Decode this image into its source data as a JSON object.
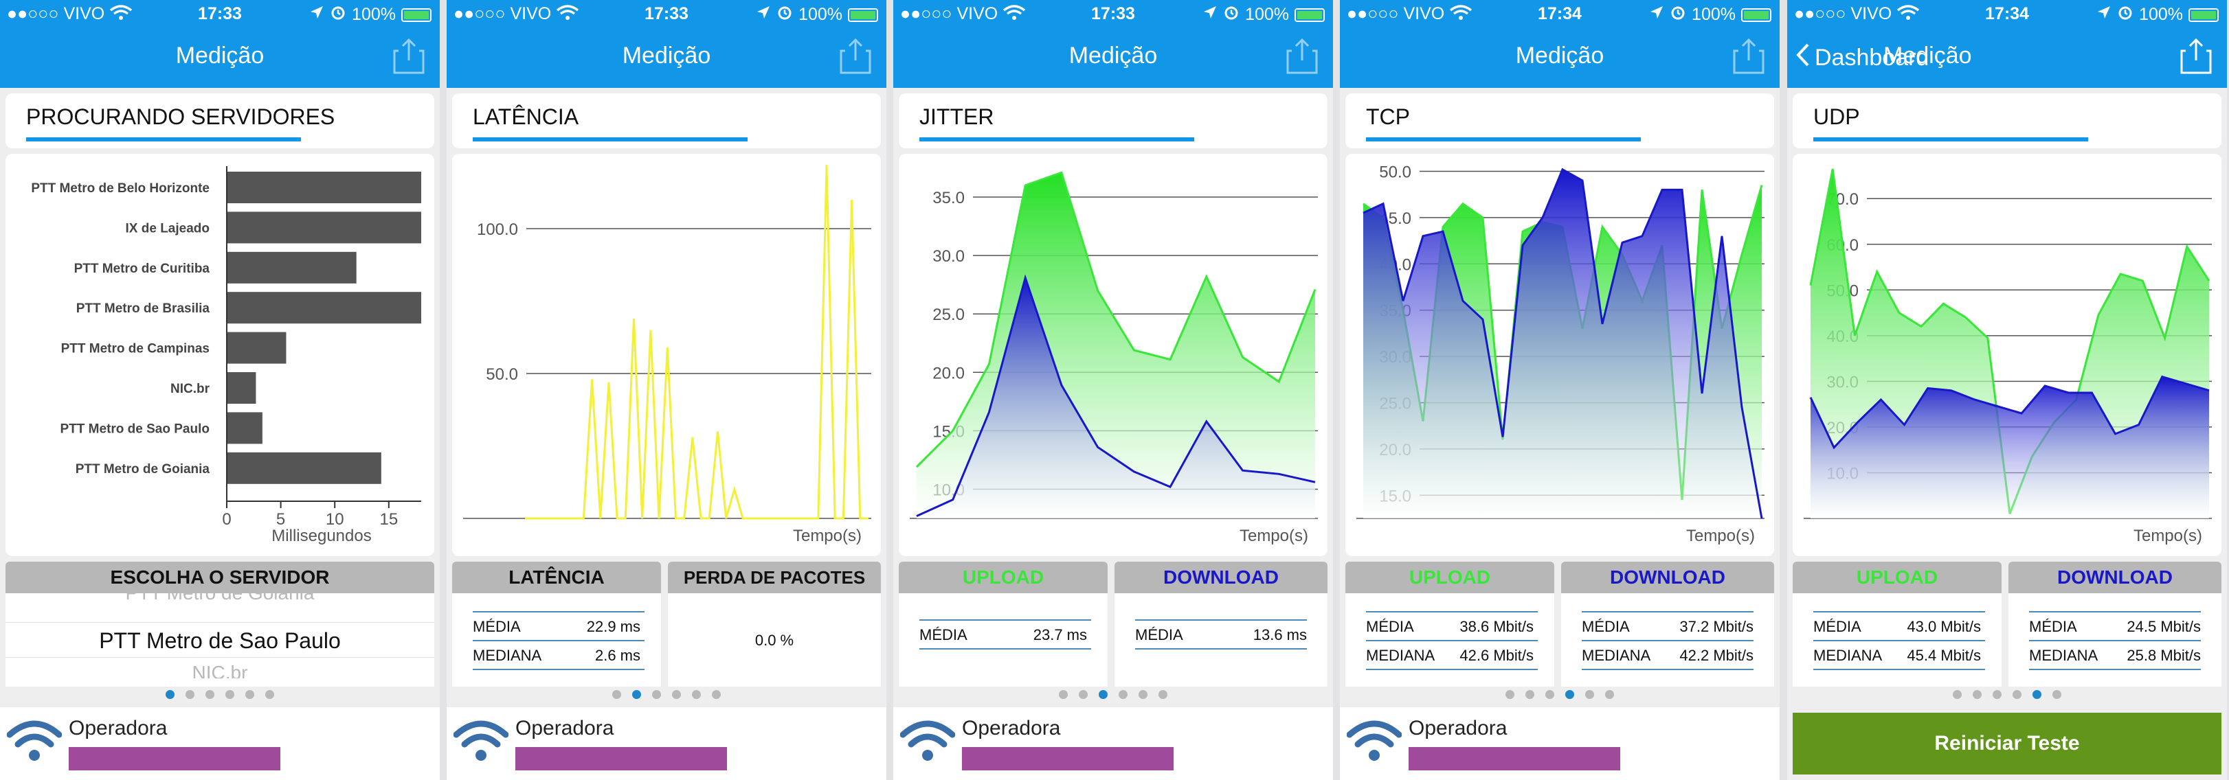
{
  "status": {
    "carrier": "●●○○○ VIVO",
    "battery": "100%",
    "times": [
      "17:33",
      "17:33",
      "17:33",
      "17:34",
      "17:34"
    ],
    "wifi_icon": "wifi-icon",
    "location_icon": "location-arrow-icon",
    "alarm_icon": "alarm-icon",
    "battery_icon": "battery-icon"
  },
  "nav": {
    "title": "Medição",
    "back_label": "Dashboard",
    "share_icon": "share-icon"
  },
  "colors": {
    "primary": "#1296e8",
    "upload_green": "#39e639",
    "download_blue": "#1818c8",
    "latency_yellow": "#f4f038",
    "bar_gray": "#555555",
    "operadora_bar": "#a04a9c",
    "restart_green": "#61961a"
  },
  "screens": [
    {
      "section_title": "PROCURANDO SERVIDORES",
      "chart_data": {
        "type": "bar",
        "orientation": "horizontal",
        "categories": [
          "PTT Metro de Belo Horizonte",
          "IX de Lajeado",
          "PTT Metro de Curitiba",
          "PTT Metro de Brasilia",
          "PTT Metro de Campinas",
          "NIC.br",
          "PTT Metro de Sao Paulo",
          "PTT Metro de Goiania"
        ],
        "values": [
          18,
          18,
          12,
          18,
          5.5,
          2.7,
          3.3,
          14.3
        ],
        "xlabel": "Millisegundos",
        "xticks": [
          "0",
          "5",
          "10",
          "15"
        ],
        "xlim": [
          0,
          18
        ]
      },
      "header": "ESCOLHA O SERVIDOR",
      "picker": {
        "above": "PTT Metro de Goiania",
        "selected": "PTT Metro de Sao Paulo",
        "below": "NIC.br"
      },
      "operadora": "Operadora",
      "page_index": 0
    },
    {
      "section_title": "LATÊNCIA",
      "chart_data": {
        "type": "line",
        "series": [
          {
            "name": "Latência",
            "values": [
              0,
              0,
              0,
              0,
              0,
              0,
              0,
              0,
              48,
              0,
              47,
              0,
              0,
              69,
              0,
              65,
              0,
              59,
              0,
              0,
              28,
              0,
              0,
              30,
              0,
              10,
              0,
              0,
              0,
              0,
              0,
              0,
              0,
              0,
              0,
              0,
              122,
              0,
              0,
              110,
              0,
              0
            ]
          }
        ],
        "yticks": [
          "50.0",
          "100.0"
        ],
        "ylim": [
          0,
          123
        ],
        "xlabel": "Tempo(s)"
      },
      "headers": [
        "LATÊNCIA",
        "PERDA DE PACOTES"
      ],
      "stats": [
        [
          {
            "label": "MÉDIA",
            "value": "22.9 ms"
          },
          {
            "label": "MEDIANA",
            "value": "2.6 ms"
          }
        ],
        [
          {
            "label": "",
            "value": "0.0 %"
          }
        ]
      ],
      "operadora": "Operadora",
      "page_index": 1
    },
    {
      "section_title": "JITTER",
      "chart_data": {
        "type": "area",
        "series": [
          {
            "name": "UPLOAD",
            "values": [
              11.9,
              15,
              20.7,
              36,
              37.1,
              27,
              21.9,
              21.1,
              28.2,
              21.3,
              19.2,
              27.1
            ]
          },
          {
            "name": "DOWNLOAD",
            "values": [
              7.7,
              9.1,
              16.6,
              28.1,
              18.9,
              13.6,
              11.5,
              10.2,
              15.8,
              11.6,
              11.3,
              10.6
            ]
          }
        ],
        "yticks": [
          "10.0",
          "15.0",
          "20.0",
          "25.0",
          "30.0",
          "35.0"
        ],
        "ylim": [
          7.5,
          38
        ],
        "xlabel": "Tempo(s)"
      },
      "headers": [
        "UPLOAD",
        "DOWNLOAD"
      ],
      "stats": [
        [
          {
            "label": "MÉDIA",
            "value": "23.7 ms"
          }
        ],
        [
          {
            "label": "MÉDIA",
            "value": "13.6 ms"
          }
        ]
      ],
      "operadora": "Operadora",
      "page_index": 2
    },
    {
      "section_title": "TCP",
      "chart_data": {
        "type": "area",
        "series": [
          {
            "name": "UPLOAD",
            "values": [
              46.5,
              45,
              35,
              23,
              44,
              46.5,
              45,
              21,
              43.5,
              44.5,
              44,
              33,
              44,
              41,
              36,
              42,
              14.5,
              48,
              33,
              41,
              48.5
            ]
          },
          {
            "name": "DOWNLOAD",
            "values": [
              45.5,
              46.5,
              36,
              43,
              43.5,
              36,
              34,
              21.3,
              42,
              45,
              50.2,
              49,
              33.5,
              42.3,
              43,
              48,
              48,
              26,
              43,
              24.5,
              12.5
            ]
          }
        ],
        "yticks": [
          "15.0",
          "20.0",
          "25.0",
          "30.0",
          "35.0",
          "40.0",
          "45.0",
          "50.0"
        ],
        "ylim": [
          12.5,
          51
        ],
        "xlabel": "Tempo(s)"
      },
      "headers": [
        "UPLOAD",
        "DOWNLOAD"
      ],
      "stats": [
        [
          {
            "label": "MÉDIA",
            "value": "38.6 Mbit/s"
          },
          {
            "label": "MEDIANA",
            "value": "42.6 Mbit/s"
          }
        ],
        [
          {
            "label": "MÉDIA",
            "value": "37.2 Mbit/s"
          },
          {
            "label": "MEDIANA",
            "value": "42.2 Mbit/s"
          }
        ]
      ],
      "operadora": "Operadora",
      "page_index": 3
    },
    {
      "section_title": "UDP",
      "chart_data": {
        "type": "area",
        "series": [
          {
            "name": "UPLOAD",
            "values": [
              51,
              76.5,
              40,
              54,
              45,
              42,
              47,
              44,
              39.5,
              1,
              13.5,
              21,
              26,
              44.5,
              53.5,
              52,
              39.5,
              59.5,
              52
            ]
          },
          {
            "name": "DOWNLOAD",
            "values": [
              26.5,
              15.5,
              21,
              26,
              20.5,
              28.5,
              28,
              26,
              24.5,
              23,
              29,
              27.5,
              27.5,
              18.5,
              20.5,
              31,
              29.5,
              28
            ]
          }
        ],
        "yticks": [
          "10.0",
          "20.0",
          "30.0",
          "40.0",
          "50.0",
          "60.0",
          "70.0"
        ],
        "ylim": [
          0,
          78
        ],
        "xlabel": "Tempo(s)"
      },
      "headers": [
        "UPLOAD",
        "DOWNLOAD"
      ],
      "stats": [
        [
          {
            "label": "MÉDIA",
            "value": "43.0 Mbit/s"
          },
          {
            "label": "MEDIANA",
            "value": "45.4 Mbit/s"
          }
        ],
        [
          {
            "label": "MÉDIA",
            "value": "24.5 Mbit/s"
          },
          {
            "label": "MEDIANA",
            "value": "25.8 Mbit/s"
          }
        ]
      ],
      "restart_button": "Reiniciar Teste",
      "page_index": 4
    }
  ],
  "pager": {
    "count": 6
  }
}
